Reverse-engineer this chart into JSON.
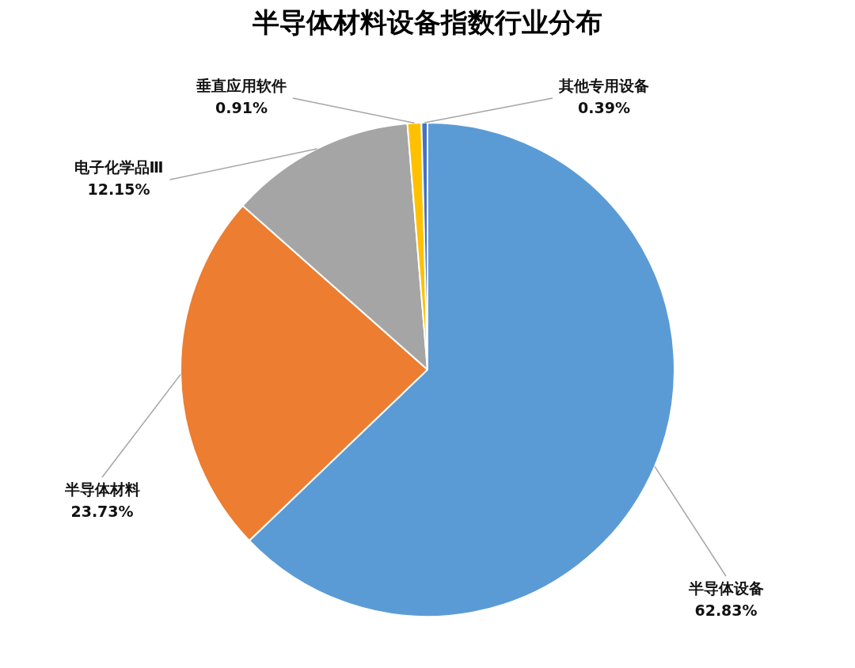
{
  "chart_data": {
    "type": "pie",
    "title": "半导体材料设备指数行业分布",
    "categories": [
      "半导体设备",
      "半导体材料",
      "电子化学品Ⅲ",
      "垂直应用软件",
      "其他专用设备"
    ],
    "values": [
      62.83,
      23.73,
      12.15,
      0.91,
      0.39
    ],
    "colors": [
      "#5b9bd5",
      "#ed7d31",
      "#a5a5a5",
      "#ffc000",
      "#4472c4"
    ],
    "value_labels": [
      "62.83%",
      "23.73%",
      "12.15%",
      "0.91%",
      "0.39%"
    ]
  }
}
